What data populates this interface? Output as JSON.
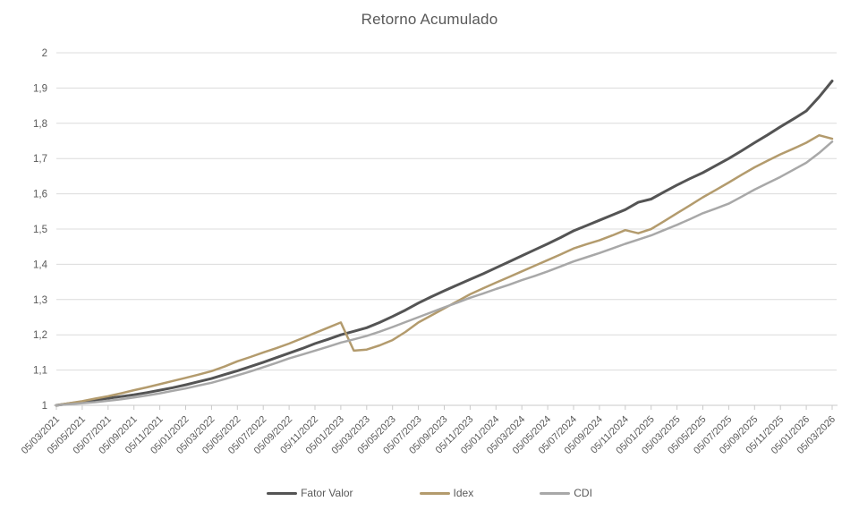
{
  "chart_data": {
    "type": "line",
    "title": "Retorno Acumulado",
    "xlabel": "",
    "ylabel": "",
    "ylim": [
      1,
      2
    ],
    "y_tick_step": 0.1,
    "y_tick_labels": [
      "2",
      "1,9",
      "1,8",
      "1,7",
      "1,6",
      "1,5",
      "1,4",
      "1,3",
      "1,2",
      "1,1",
      "1"
    ],
    "grid": "horizontal",
    "legend_position": "bottom",
    "text_color": "#595959",
    "gridline_color": "#dcdcdc",
    "axis_color": "#c9c9c9",
    "x": [
      "05/03/2021",
      "05/04/2021",
      "05/05/2021",
      "05/06/2021",
      "05/07/2021",
      "05/08/2021",
      "05/09/2021",
      "05/10/2021",
      "05/11/2021",
      "05/12/2021",
      "05/01/2022",
      "05/02/2022",
      "05/03/2022",
      "05/04/2022",
      "05/05/2022",
      "05/06/2022",
      "05/07/2022",
      "05/08/2022",
      "05/09/2022",
      "05/10/2022",
      "05/11/2022",
      "05/12/2022",
      "05/01/2023",
      "05/02/2023",
      "05/03/2023",
      "05/04/2023",
      "05/05/2023",
      "05/06/2023",
      "05/07/2023",
      "05/08/2023",
      "05/09/2023",
      "05/10/2023",
      "05/11/2023",
      "05/12/2023",
      "05/01/2024",
      "05/02/2024",
      "05/03/2024",
      "05/04/2024",
      "05/05/2024",
      "05/06/2024",
      "05/07/2024",
      "05/08/2024",
      "05/09/2024",
      "05/10/2024",
      "05/11/2024",
      "05/12/2024",
      "05/01/2025",
      "05/02/2025",
      "05/03/2025",
      "05/04/2025",
      "05/05/2025",
      "05/06/2025",
      "05/07/2025",
      "05/08/2025",
      "05/09/2025",
      "05/10/2025",
      "05/11/2025",
      "05/12/2025",
      "05/01/2026",
      "05/02/2026",
      "05/03/2026"
    ],
    "x_tick_labels": [
      "05/03/2021",
      "05/05/2021",
      "05/07/2021",
      "05/09/2021",
      "05/11/2021",
      "05/01/2022",
      "05/03/2022",
      "05/05/2022",
      "05/07/2022",
      "05/09/2022",
      "05/11/2022",
      "05/01/2023",
      "05/03/2023",
      "05/05/2023",
      "05/07/2023",
      "05/09/2023",
      "05/11/2023",
      "05/01/2024",
      "05/03/2024",
      "05/05/2024",
      "05/07/2024",
      "05/09/2024",
      "05/11/2024",
      "05/01/2025",
      "05/03/2025",
      "05/05/2025",
      "05/07/2025",
      "05/09/2025",
      "05/11/2025",
      "05/01/2026",
      "05/03/2026"
    ],
    "series": [
      {
        "name": "Fator Valor",
        "color": "#545454",
        "stroke_width": 3,
        "values": [
          1.0,
          1.005,
          1.01,
          1.015,
          1.02,
          1.025,
          1.03,
          1.036,
          1.043,
          1.05,
          1.058,
          1.067,
          1.076,
          1.087,
          1.098,
          1.11,
          1.122,
          1.135,
          1.148,
          1.161,
          1.175,
          1.187,
          1.2,
          1.21,
          1.22,
          1.235,
          1.252,
          1.27,
          1.29,
          1.308,
          1.325,
          1.341,
          1.357,
          1.373,
          1.39,
          1.407,
          1.424,
          1.441,
          1.458,
          1.476,
          1.495,
          1.51,
          1.525,
          1.54,
          1.555,
          1.576,
          1.585,
          1.605,
          1.625,
          1.643,
          1.66,
          1.68,
          1.7,
          1.722,
          1.745,
          1.767,
          1.79,
          1.812,
          1.835,
          1.875,
          1.92
        ]
      },
      {
        "name": "Idex",
        "color": "#b39b6d",
        "stroke_width": 2.5,
        "values": [
          1.0,
          1.006,
          1.012,
          1.019,
          1.026,
          1.034,
          1.043,
          1.051,
          1.06,
          1.069,
          1.078,
          1.087,
          1.097,
          1.11,
          1.125,
          1.137,
          1.15,
          1.162,
          1.175,
          1.19,
          1.205,
          1.22,
          1.235,
          1.155,
          1.158,
          1.17,
          1.185,
          1.208,
          1.235,
          1.255,
          1.275,
          1.295,
          1.315,
          1.332,
          1.348,
          1.364,
          1.38,
          1.396,
          1.412,
          1.428,
          1.445,
          1.457,
          1.468,
          1.482,
          1.497,
          1.488,
          1.5,
          1.522,
          1.545,
          1.567,
          1.59,
          1.611,
          1.632,
          1.654,
          1.675,
          1.694,
          1.712,
          1.728,
          1.745,
          1.766,
          1.756
        ]
      },
      {
        "name": "CDI",
        "color": "#a8a8a8",
        "stroke_width": 2.5,
        "values": [
          1.0,
          1.003,
          1.006,
          1.009,
          1.013,
          1.017,
          1.022,
          1.028,
          1.034,
          1.041,
          1.048,
          1.056,
          1.064,
          1.074,
          1.085,
          1.096,
          1.108,
          1.12,
          1.133,
          1.144,
          1.155,
          1.166,
          1.178,
          1.187,
          1.197,
          1.209,
          1.222,
          1.236,
          1.25,
          1.264,
          1.278,
          1.291,
          1.305,
          1.317,
          1.33,
          1.342,
          1.355,
          1.367,
          1.38,
          1.394,
          1.408,
          1.42,
          1.432,
          1.445,
          1.458,
          1.47,
          1.482,
          1.497,
          1.512,
          1.528,
          1.545,
          1.558,
          1.572,
          1.592,
          1.612,
          1.63,
          1.648,
          1.668,
          1.688,
          1.716,
          1.748
        ]
      }
    ]
  }
}
